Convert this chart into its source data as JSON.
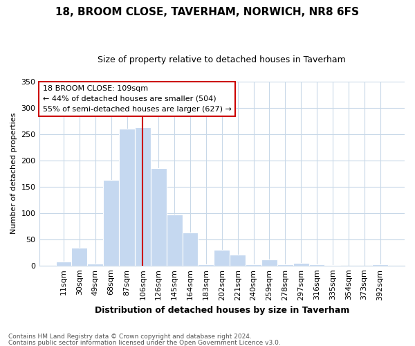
{
  "title": "18, BROOM CLOSE, TAVERHAM, NORWICH, NR8 6FS",
  "subtitle": "Size of property relative to detached houses in Taverham",
  "xlabel": "Distribution of detached houses by size in Taverham",
  "ylabel": "Number of detached properties",
  "annotation_line1": "18 BROOM CLOSE: 109sqm",
  "annotation_line2": "← 44% of detached houses are smaller (504)",
  "annotation_line3": "55% of semi-detached houses are larger (627) →",
  "footnote1": "Contains HM Land Registry data © Crown copyright and database right 2024.",
  "footnote2": "Contains public sector information licensed under the Open Government Licence v3.0.",
  "categories": [
    "11sqm",
    "30sqm",
    "49sqm",
    "68sqm",
    "87sqm",
    "106sqm",
    "126sqm",
    "145sqm",
    "164sqm",
    "183sqm",
    "202sqm",
    "221sqm",
    "240sqm",
    "259sqm",
    "278sqm",
    "297sqm",
    "316sqm",
    "335sqm",
    "354sqm",
    "373sqm",
    "392sqm"
  ],
  "values": [
    8,
    34,
    3,
    163,
    260,
    263,
    185,
    97,
    63,
    2,
    30,
    21,
    2,
    11,
    2,
    5,
    2,
    1,
    0,
    0,
    2
  ],
  "bar_color": "#c5d8f0",
  "bar_edge_color": "#c5d8f0",
  "vline_color": "#cc0000",
  "vline_x": 5,
  "annotation_box_edgecolor": "#cc0000",
  "bg_color": "#ffffff",
  "grid_color": "#c8d8e8",
  "ylim": [
    0,
    350
  ],
  "yticks": [
    0,
    50,
    100,
    150,
    200,
    250,
    300,
    350
  ],
  "title_fontsize": 11,
  "subtitle_fontsize": 9,
  "ylabel_fontsize": 8,
  "xlabel_fontsize": 9,
  "tick_fontsize": 8,
  "annot_fontsize": 8,
  "footnote_fontsize": 6.5
}
